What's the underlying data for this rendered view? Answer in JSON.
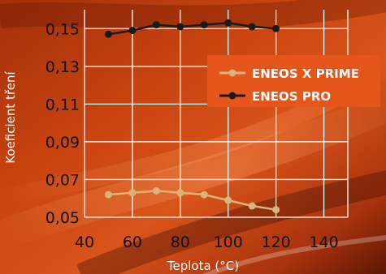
{
  "chart_data": {
    "type": "line",
    "xlabel": "Teplota (°C)",
    "ylabel": "Koeficient tření",
    "xlim": [
      40,
      150
    ],
    "ylim": [
      0.05,
      0.16
    ],
    "x_ticks": [
      {
        "v": 40,
        "label": "40"
      },
      {
        "v": 60,
        "label": "60"
      },
      {
        "v": 80,
        "label": "80"
      },
      {
        "v": 100,
        "label": "100"
      },
      {
        "v": 120,
        "label": "120"
      },
      {
        "v": 140,
        "label": "140"
      }
    ],
    "y_ticks": [
      {
        "v": 0.05,
        "label": "0,05"
      },
      {
        "v": 0.07,
        "label": "0,07"
      },
      {
        "v": 0.09,
        "label": "0,09"
      },
      {
        "v": 0.11,
        "label": "0,11"
      },
      {
        "v": 0.13,
        "label": "0,13"
      },
      {
        "v": 0.15,
        "label": "0,15"
      }
    ],
    "grid": true,
    "legend_position": "top-right",
    "x": [
      50,
      60,
      70,
      80,
      90,
      100,
      110,
      120
    ],
    "series": [
      {
        "name": "ENEOS X PRIME",
        "color": "#d9b57c",
        "values": [
          0.062,
          0.063,
          0.064,
          0.063,
          0.062,
          0.059,
          0.056,
          0.054
        ]
      },
      {
        "name": "ENEOS PRO",
        "color": "#1a1a1a",
        "values": [
          0.147,
          0.149,
          0.152,
          0.151,
          0.152,
          0.153,
          0.151,
          0.15
        ]
      }
    ]
  },
  "colors": {
    "background_dark": "#7a1e05",
    "background_mid": "#c8400f",
    "background_light": "#f07a3a",
    "legend_box": "#e4561c",
    "grid": "#ffffff"
  }
}
